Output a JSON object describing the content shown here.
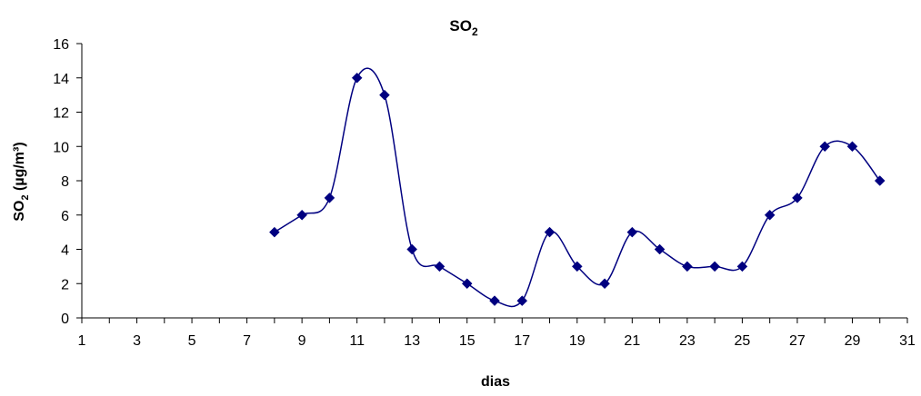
{
  "chart_data": {
    "type": "line",
    "title": "SO",
    "title_sub": "2",
    "xlabel": "dias",
    "ylabel_main": "SO",
    "ylabel_sub": "2",
    "ylabel_rest": " (µg/m³)",
    "xlim": [
      1,
      31
    ],
    "ylim": [
      0,
      16
    ],
    "x_ticks": [
      1,
      3,
      5,
      7,
      9,
      11,
      13,
      15,
      17,
      19,
      21,
      23,
      25,
      27,
      29,
      31
    ],
    "y_ticks": [
      0,
      2,
      4,
      6,
      8,
      10,
      12,
      14,
      16
    ],
    "grid": false,
    "smooth": true,
    "marker": "diamond",
    "series": [
      {
        "color": "#000080",
        "x": [
          8,
          9,
          10,
          11,
          12,
          13,
          14,
          15,
          16,
          17,
          18,
          19,
          20,
          21,
          22,
          23,
          24,
          25,
          26,
          27,
          28,
          29,
          30
        ],
        "y": [
          5,
          6,
          7,
          14,
          13,
          4,
          3,
          2,
          1,
          1,
          5,
          3,
          2,
          5,
          4,
          3,
          3,
          3,
          6,
          7,
          10,
          10,
          8
        ]
      }
    ]
  }
}
